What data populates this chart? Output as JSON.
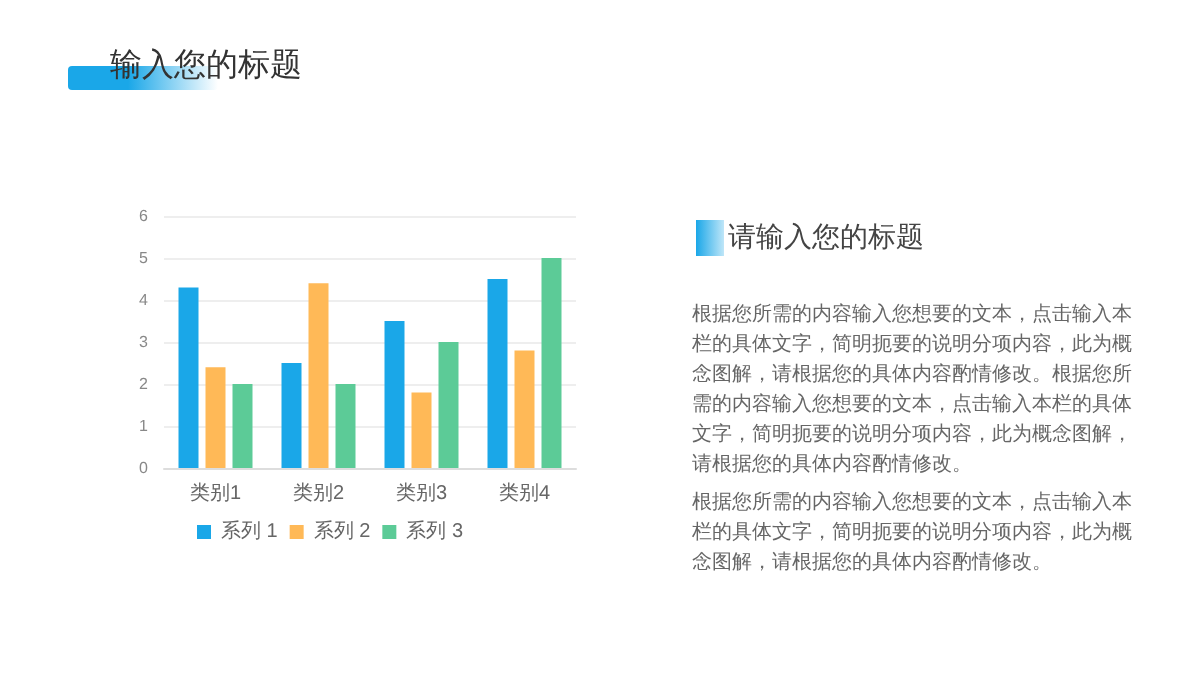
{
  "chart_data": [
    {
      "type": "bar",
      "title": "输入您的标题",
      "categories": [
        "类别1",
        "类别2",
        "类别3",
        "类别4"
      ],
      "series": [
        {
          "name": "系列 1",
          "color": "#1aa7e8",
          "values": [
            4.3,
            2.5,
            3.5,
            4.5
          ]
        },
        {
          "name": "系列 2",
          "color": "#ffb957",
          "values": [
            2.4,
            4.4,
            1.8,
            2.8
          ]
        },
        {
          "name": "系列 3",
          "color": "#5ccb97",
          "values": [
            2,
            2,
            3,
            5
          ]
        }
      ],
      "ylim": [
        0,
        6
      ],
      "yticks": [
        0,
        1,
        2,
        3,
        4,
        5,
        6
      ],
      "grid": "y",
      "legend": "bottom"
    },
    {
      "type": "other",
      "title": "请输入您的标题",
      "annotations": [
        "根据您所需的内容输入您想要的文本，点击输入本栏的具体文字，简明扼要的说明分项内容，此为概念图解，请根据您的具体内容酌情修改。根据您所需的内容输入您想要的文本，点击输入本栏的具体文字，简明扼要的说明分项内容，此为概念图解，请根据您的具体内容酌情修改。",
        "根据您所需的内容输入您想要的文本，点击输入本栏的具体文字，简明扼要的说明分项内容，此为概念图解，请根据您的具体内容酌情修改。"
      ]
    }
  ]
}
